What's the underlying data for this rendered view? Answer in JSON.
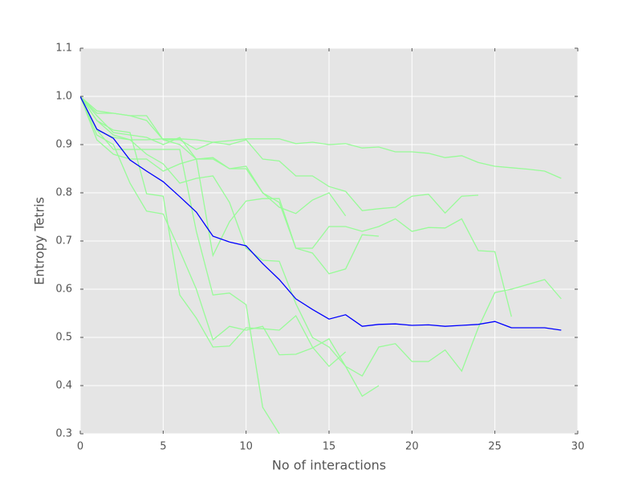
{
  "chart_data": {
    "type": "line",
    "xlabel": "No of interactions",
    "ylabel": "Entropy Tetris",
    "x": [
      0,
      1,
      2,
      3,
      4,
      5,
      6,
      7,
      8,
      9,
      10,
      11,
      12,
      13,
      14,
      15,
      16,
      17,
      18,
      19,
      20,
      21,
      22,
      23,
      24,
      25,
      26,
      27,
      28,
      29
    ],
    "xlim": [
      0,
      30
    ],
    "xticks": [
      0,
      5,
      10,
      15,
      20,
      25,
      30
    ],
    "ylim": [
      0.3,
      1.1
    ],
    "yticks": [
      0.3,
      0.4,
      0.5,
      0.6,
      0.7,
      0.8,
      0.9,
      {
        "value": 1,
        "label": "1.0"
      },
      1.1
    ],
    "grid": true,
    "series": [
      {
        "color": "#98fb98",
        "values": [
          1.0,
          0.93,
          0.915,
          0.91,
          0.91,
          0.912,
          0.912,
          0.91,
          0.905,
          0.908,
          0.912,
          0.912,
          0.912,
          0.902,
          0.905,
          0.9,
          0.902,
          0.893,
          0.895,
          0.885,
          0.885,
          0.882,
          0.873,
          0.877,
          0.863,
          0.855,
          0.852,
          0.849,
          0.845,
          0.83
        ]
      },
      {
        "color": "#98fb98",
        "values": [
          1.0,
          0.95,
          0.92,
          0.91,
          0.88,
          0.86,
          0.82,
          0.83,
          0.835,
          0.78,
          0.685,
          0.66,
          0.658,
          0.57,
          0.5,
          0.48,
          0.44,
          0.42,
          0.48,
          0.487,
          0.45,
          0.45,
          0.474,
          0.43,
          0.52,
          0.593,
          0.6,
          0.61,
          0.62,
          0.58
        ]
      },
      {
        "color": "#98fb98",
        "values": [
          1.0,
          0.965,
          0.965,
          0.96,
          0.96,
          0.91,
          0.9,
          0.87,
          0.87,
          0.85,
          0.85,
          0.8,
          0.78,
          0.685,
          0.685,
          0.73,
          0.73,
          0.72,
          0.73,
          0.746,
          0.72,
          0.728,
          0.727,
          0.746,
          0.68,
          0.678,
          0.543,
          null,
          null,
          null
        ]
      },
      {
        "color": "#98fb98",
        "values": [
          1.0,
          0.97,
          0.965,
          0.96,
          0.95,
          0.91,
          0.91,
          0.89,
          0.905,
          0.9,
          0.91,
          0.87,
          0.866,
          0.835,
          0.835,
          0.813,
          0.803,
          0.763,
          0.767,
          0.77,
          0.793,
          0.797,
          0.758,
          0.793,
          0.795,
          null,
          null,
          null,
          null,
          null
        ]
      },
      {
        "color": "#98fb98",
        "values": [
          1.0,
          0.91,
          0.88,
          0.87,
          0.87,
          0.845,
          0.86,
          0.87,
          0.67,
          0.74,
          0.783,
          0.788,
          0.788,
          0.685,
          0.675,
          0.632,
          0.642,
          0.713,
          0.71,
          null,
          null,
          null,
          null,
          null,
          null,
          null,
          null,
          null,
          null,
          null
        ]
      },
      {
        "color": "#98fb98",
        "values": [
          1.0,
          0.92,
          0.9,
          0.82,
          0.762,
          0.756,
          0.68,
          0.6,
          0.495,
          0.523,
          0.515,
          0.523,
          0.464,
          0.465,
          0.478,
          0.497,
          0.44,
          0.378,
          0.4,
          null,
          null,
          null,
          null,
          null,
          null,
          null,
          null,
          null,
          null,
          null
        ]
      },
      {
        "color": "#98fb98",
        "values": [
          1.0,
          0.95,
          0.93,
          0.925,
          0.798,
          0.793,
          0.588,
          0.54,
          0.48,
          0.482,
          0.52,
          0.518,
          0.515,
          0.545,
          0.48,
          0.44,
          0.47,
          null,
          null,
          null,
          null,
          null,
          null,
          null,
          null,
          null,
          null,
          null,
          null,
          null
        ]
      },
      {
        "color": "#98fb98",
        "values": [
          1.0,
          0.93,
          0.89,
          0.89,
          0.89,
          0.89,
          0.89,
          0.72,
          0.588,
          0.592,
          0.568,
          0.355,
          0.3,
          null,
          null,
          null,
          null,
          null,
          null,
          null,
          null,
          null,
          null,
          null,
          null,
          null,
          null,
          null,
          null,
          null
        ]
      },
      {
        "color": "#98fb98",
        "values": [
          1.0,
          0.96,
          0.925,
          0.92,
          0.915,
          0.9,
          0.915,
          0.87,
          0.873,
          0.85,
          0.855,
          0.8,
          0.77,
          0.757,
          0.785,
          0.8,
          0.752,
          null,
          null,
          null,
          null,
          null,
          null,
          null,
          null,
          null,
          null,
          null,
          null,
          null
        ]
      },
      {
        "color": "#0000ff",
        "values": [
          1.0,
          0.932,
          0.913,
          0.868,
          0.845,
          0.823,
          0.792,
          0.76,
          0.71,
          0.698,
          0.69,
          0.653,
          0.62,
          0.58,
          0.558,
          0.538,
          0.547,
          0.523,
          0.527,
          0.528,
          0.525,
          0.526,
          0.523,
          0.525,
          0.527,
          0.533,
          0.52,
          0.52,
          0.52,
          0.515
        ]
      }
    ]
  }
}
